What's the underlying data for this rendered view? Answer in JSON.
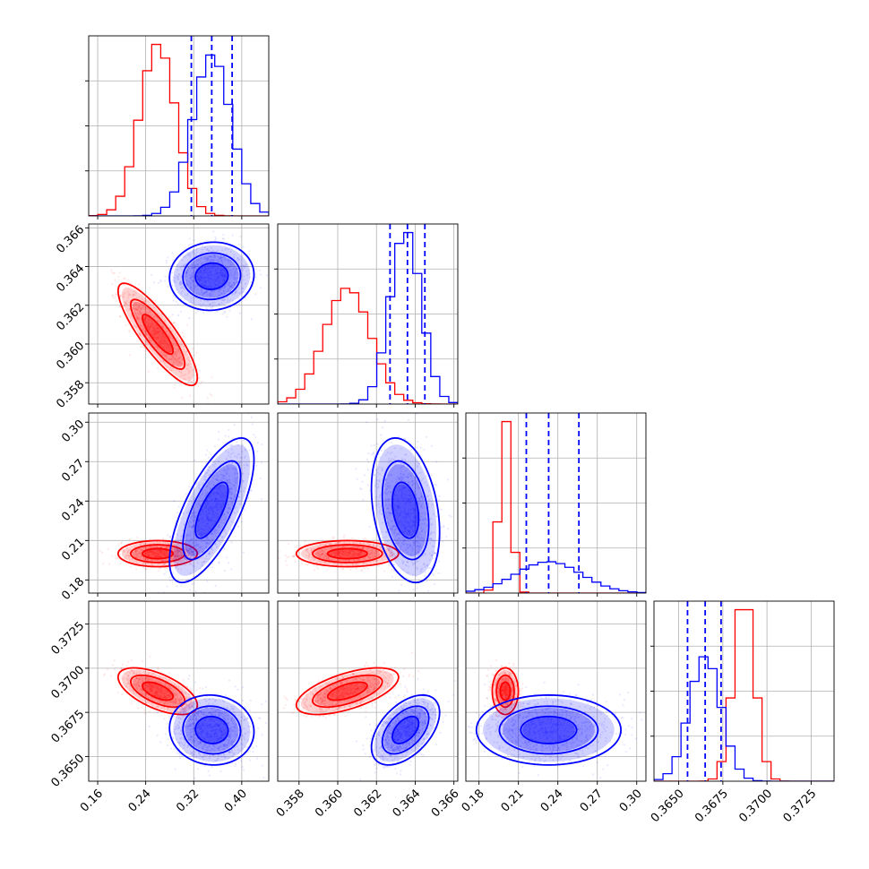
{
  "chart_data": {
    "type": "corner",
    "title": "",
    "parameters": [
      {
        "ticks": [
          0.16,
          0.24,
          0.32,
          0.4
        ],
        "tick_labels": [
          "0.16",
          "0.24",
          "0.32",
          "0.40"
        ],
        "range": [
          0.145,
          0.445
        ]
      },
      {
        "ticks": [
          0.358,
          0.36,
          0.362,
          0.364,
          0.366
        ],
        "tick_labels": [
          "0.358",
          "0.360",
          "0.362",
          "0.364",
          "0.366"
        ],
        "range": [
          0.3569,
          0.3662
        ]
      },
      {
        "ticks": [
          0.18,
          0.21,
          0.24,
          0.27,
          0.3
        ],
        "tick_labels": [
          "0.18",
          "0.21",
          "0.24",
          "0.27",
          "0.30"
        ],
        "range": [
          0.17,
          0.307
        ]
      },
      {
        "ticks": [
          0.365,
          0.3675,
          0.37,
          0.3725
        ],
        "tick_labels": [
          "0.3650",
          "0.3675",
          "0.3700",
          "0.3725"
        ],
        "range": [
          0.3636,
          0.3738
        ]
      }
    ],
    "series": [
      {
        "color": "#ff0000",
        "mean": [
          0.26,
          0.3605,
          0.2,
          0.3687
        ],
        "std": [
          0.03,
          0.0012,
          0.0045,
          0.0006
        ],
        "correlations": {
          "0-1": -0.85,
          "0-2": 0.0,
          "0-3": -0.6,
          "1-2": 0.0,
          "1-3": 0.6,
          "2-3": 0.0
        },
        "quantile_lines": []
      },
      {
        "color": "#0000ff",
        "mean": [
          0.35,
          0.3635,
          0.233,
          0.3665
        ],
        "std": [
          0.032,
          0.0008,
          0.025,
          0.0009
        ],
        "correlations": {
          "0-1": 0.05,
          "0-2": 0.7,
          "0-3": -0.05,
          "1-2": -0.3,
          "1-3": 0.5,
          "2-3": 0.0
        },
        "quantile_lines": [
          [
            0.316,
            0.35,
            0.384
          ],
          [
            0.3627,
            0.3636,
            0.3645
          ],
          [
            0.216,
            0.233,
            0.256
          ],
          [
            0.3655,
            0.3665,
            0.3674
          ]
        ]
      }
    ],
    "grid": true,
    "legend": "none"
  }
}
